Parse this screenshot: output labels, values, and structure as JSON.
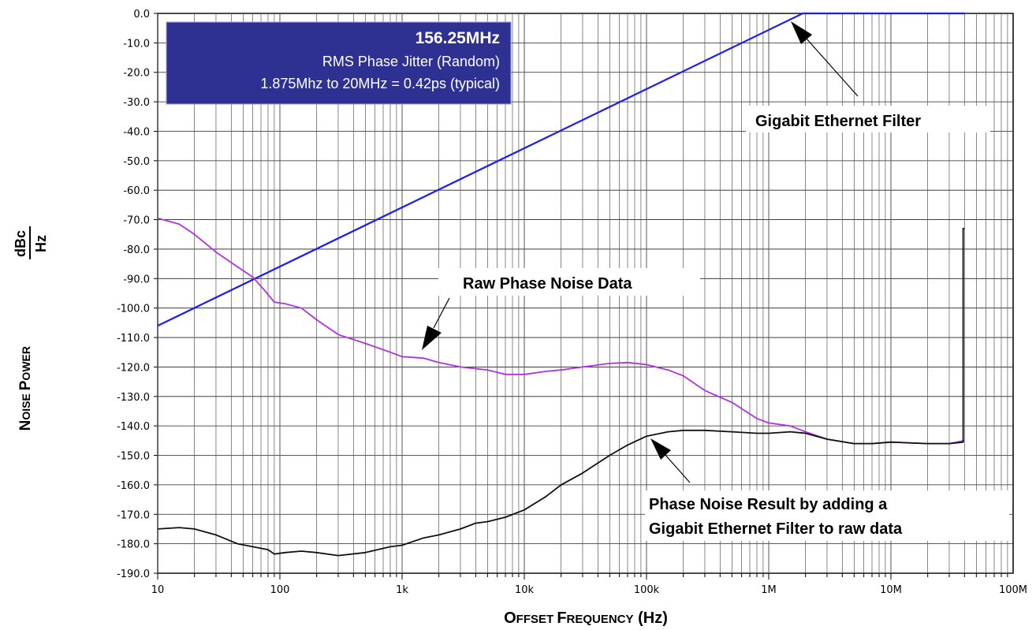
{
  "chart_data": {
    "type": "line",
    "x_scale": "log",
    "xlim": [
      10,
      100000000
    ],
    "ylim": [
      -190,
      0
    ],
    "grid": true,
    "xlabel": {
      "first": "O",
      "first_rest": "FFSET",
      "second": "F",
      "second_rest": "REQUENCY",
      "unit": "(Hz)"
    },
    "ylabel": {
      "first": "N",
      "first_rest": "OISE",
      "second": "P",
      "second_rest": "OWER",
      "unit_num": "dBc",
      "unit_den": "Hz"
    },
    "x_ticks": [
      {
        "v": 10,
        "label": "10"
      },
      {
        "v": 100,
        "label": "100"
      },
      {
        "v": 1000,
        "label": "1k"
      },
      {
        "v": 10000,
        "label": "10k"
      },
      {
        "v": 100000,
        "label": "100k"
      },
      {
        "v": 1000000,
        "label": "1M"
      },
      {
        "v": 10000000,
        "label": "10M"
      },
      {
        "v": 100000000,
        "label": "100M"
      }
    ],
    "y_ticks": [
      {
        "v": 0,
        "label": "0.0"
      },
      {
        "v": -10,
        "label": "-10.0"
      },
      {
        "v": -20,
        "label": "-20.0"
      },
      {
        "v": -30,
        "label": "-30.0"
      },
      {
        "v": -40,
        "label": "-40.0"
      },
      {
        "v": -50,
        "label": "-50.0"
      },
      {
        "v": -60,
        "label": "-60.0"
      },
      {
        "v": -70,
        "label": "-70.0"
      },
      {
        "v": -80,
        "label": "-80.0"
      },
      {
        "v": -90,
        "label": "-90.0"
      },
      {
        "v": -100,
        "label": "-100.0"
      },
      {
        "v": -110,
        "label": "-110.0"
      },
      {
        "v": -120,
        "label": "-120.0"
      },
      {
        "v": -130,
        "label": "-130.0"
      },
      {
        "v": -140,
        "label": "-140.0"
      },
      {
        "v": -150,
        "label": "-150.0"
      },
      {
        "v": -160,
        "label": "-160.0"
      },
      {
        "v": -170,
        "label": "-170.0"
      },
      {
        "v": -180,
        "label": "-180.0"
      },
      {
        "v": -190,
        "label": "-190.0"
      }
    ],
    "series": [
      {
        "key": "filter",
        "color": "#1a1aff",
        "points": [
          [
            10,
            -106
          ],
          [
            1900000,
            0
          ],
          [
            40000000,
            0
          ]
        ]
      },
      {
        "key": "raw",
        "color": "#b430e0",
        "points": [
          [
            10,
            -69.5
          ],
          [
            15,
            -71.5
          ],
          [
            20,
            -75
          ],
          [
            30,
            -81
          ],
          [
            45,
            -86
          ],
          [
            60,
            -89.5
          ],
          [
            75,
            -94
          ],
          [
            90,
            -98
          ],
          [
            110,
            -98.5
          ],
          [
            150,
            -100
          ],
          [
            200,
            -104
          ],
          [
            300,
            -109
          ],
          [
            500,
            -112
          ],
          [
            800,
            -115
          ],
          [
            1000,
            -116.5
          ],
          [
            1500,
            -117
          ],
          [
            2000,
            -118.5
          ],
          [
            3000,
            -120
          ],
          [
            5000,
            -121
          ],
          [
            7000,
            -122.5
          ],
          [
            10000,
            -122.5
          ],
          [
            15000,
            -121.5
          ],
          [
            20000,
            -121
          ],
          [
            30000,
            -120
          ],
          [
            50000,
            -118.8
          ],
          [
            70000,
            -118.5
          ],
          [
            100000,
            -119.2
          ],
          [
            150000,
            -121
          ],
          [
            200000,
            -123
          ],
          [
            300000,
            -128
          ],
          [
            500000,
            -132
          ],
          [
            800000,
            -137.5
          ],
          [
            1000000,
            -139
          ],
          [
            1500000,
            -140
          ],
          [
            2000000,
            -142
          ],
          [
            3000000,
            -144.5
          ],
          [
            5000000,
            -146
          ],
          [
            7000000,
            -146
          ],
          [
            10000000,
            -145.5
          ],
          [
            20000000,
            -146
          ],
          [
            30000000,
            -146
          ],
          [
            40000000,
            -145
          ]
        ]
      },
      {
        "key": "result",
        "color": "#111111",
        "points": [
          [
            10,
            -175
          ],
          [
            15,
            -174.5
          ],
          [
            20,
            -175
          ],
          [
            30,
            -177
          ],
          [
            45,
            -180
          ],
          [
            60,
            -181
          ],
          [
            80,
            -182
          ],
          [
            90,
            -183.5
          ],
          [
            110,
            -183
          ],
          [
            150,
            -182.5
          ],
          [
            200,
            -183
          ],
          [
            300,
            -184
          ],
          [
            500,
            -183
          ],
          [
            800,
            -181
          ],
          [
            1000,
            -180.5
          ],
          [
            1500,
            -178
          ],
          [
            2000,
            -177
          ],
          [
            3000,
            -175
          ],
          [
            4000,
            -173
          ],
          [
            5000,
            -172.5
          ],
          [
            7000,
            -171
          ],
          [
            10000,
            -168.5
          ],
          [
            15000,
            -164
          ],
          [
            20000,
            -160
          ],
          [
            30000,
            -156
          ],
          [
            50000,
            -150
          ],
          [
            70000,
            -146.5
          ],
          [
            100000,
            -143.5
          ],
          [
            150000,
            -142
          ],
          [
            200000,
            -141.5
          ],
          [
            300000,
            -141.5
          ],
          [
            500000,
            -142
          ],
          [
            800000,
            -142.5
          ],
          [
            1000000,
            -142.5
          ],
          [
            1500000,
            -142
          ],
          [
            2000000,
            -142.5
          ],
          [
            3000000,
            -144.5
          ],
          [
            5000000,
            -146
          ],
          [
            7000000,
            -146
          ],
          [
            10000000,
            -145.5
          ],
          [
            20000000,
            -146
          ],
          [
            30000000,
            -146
          ],
          [
            39000000,
            -145.5
          ],
          [
            39000000,
            -73
          ],
          [
            40000000,
            -73
          ]
        ]
      }
    ],
    "info_box": {
      "title": "156.25MHz",
      "line1": "RMS Phase Jitter  (Random)",
      "line2": "1.875Mhz to 20MHz = 0.42ps (typical)",
      "bg": "#2e3192"
    },
    "annotations": {
      "filter_label": "Gigabit Ethernet Filter",
      "raw_label": "Raw Phase Noise Data",
      "result_line1": "Phase Noise Result by adding a",
      "result_line2": "Gigabit Ethernet Filter to raw data"
    }
  }
}
